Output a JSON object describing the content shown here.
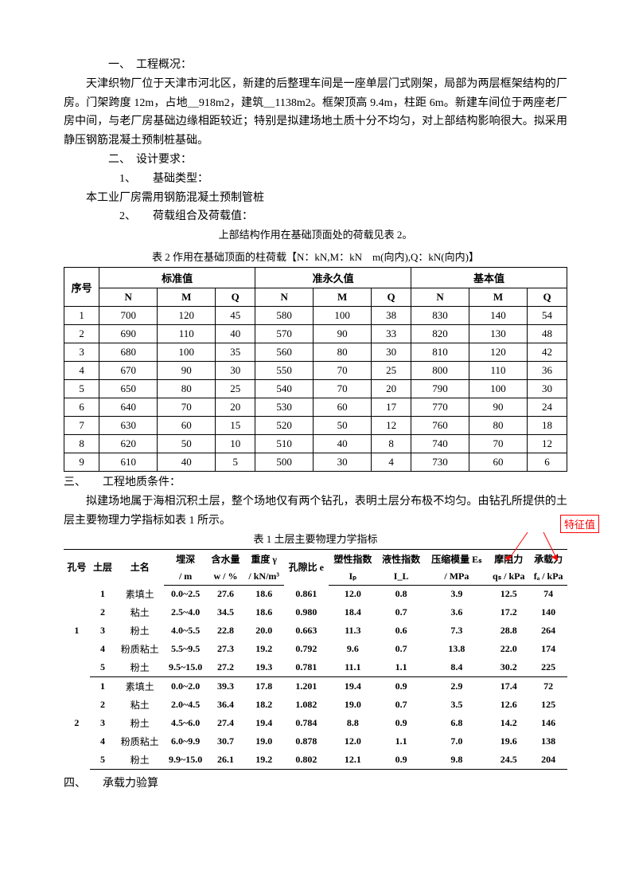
{
  "sections": {
    "s1_heading": "一、　工程概况：",
    "s1_body": "天津织物厂位于天津市河北区，新建的后整理车间是一座单层门式刚架，局部为两层框架结构的厂房。门架跨度 12m，占地＿918m2，建筑＿1138m2。框架顶高 9.4m，柱距 6m。新建车间位于两座老厂房中间，与老厂房基础边缘相距较近；特别是拟建场地土质十分不均匀，对上部结构影响很大。拟采用静压钢筋混凝土预制桩基础。",
    "s2_heading": "二、　设计要求：",
    "s2_item1": "1、　　基础类型：",
    "s2_item1_body": "本工业厂房需用钢筋混凝土预制管桩",
    "s2_item2": "2、　　荷载组合及荷载值：",
    "s2_item2_body": "上部结构作用在基础顶面处的荷载见表 2。",
    "s3_heading": "三、　　工程地质条件：",
    "s3_body": "拟建场地属于海相沉积土层，整个场地仅有两个钻孔，表明土层分布极不均匀。由钻孔所提供的土层主要物理力学指标如表 1 所示。",
    "s4_heading": "四、　　承载力验算"
  },
  "table2": {
    "caption": "表 2 作用在基础顶面的柱荷载【N：kN,M：kN　m(向内),Q：kN(向内)】",
    "group_headers": [
      "序号",
      "标准值",
      "准永久值",
      "基本值"
    ],
    "sub_headers": [
      "N",
      "M",
      "Q",
      "N",
      "M",
      "Q",
      "N",
      "M",
      "Q"
    ],
    "rows": [
      [
        "1",
        "700",
        "120",
        "45",
        "580",
        "100",
        "38",
        "830",
        "140",
        "54"
      ],
      [
        "2",
        "690",
        "110",
        "40",
        "570",
        "90",
        "33",
        "820",
        "130",
        "48"
      ],
      [
        "3",
        "680",
        "100",
        "35",
        "560",
        "80",
        "30",
        "810",
        "120",
        "42"
      ],
      [
        "4",
        "670",
        "90",
        "30",
        "550",
        "70",
        "25",
        "800",
        "110",
        "36"
      ],
      [
        "5",
        "650",
        "80",
        "25",
        "540",
        "70",
        "20",
        "790",
        "100",
        "30"
      ],
      [
        "6",
        "640",
        "70",
        "20",
        "530",
        "60",
        "17",
        "770",
        "90",
        "24"
      ],
      [
        "7",
        "630",
        "60",
        "15",
        "520",
        "50",
        "12",
        "760",
        "80",
        "18"
      ],
      [
        "8",
        "620",
        "50",
        "10",
        "510",
        "40",
        "8",
        "740",
        "70",
        "12"
      ],
      [
        "9",
        "610",
        "40",
        "5",
        "500",
        "30",
        "4",
        "730",
        "60",
        "6"
      ]
    ]
  },
  "table1": {
    "caption": "表 1 土层主要物理力学指标",
    "callout": "特征值",
    "headers": {
      "hole": "孔号",
      "layer": "土层",
      "name": "土名",
      "depth": "埋深",
      "depth_unit": "/ m",
      "water": "含水量",
      "water_unit": "w / %",
      "gamma": "重度 γ",
      "gamma_unit": "/ kN/m³",
      "void": "孔隙比 e",
      "ip": "塑性指数",
      "ip_sym": "Iₚ",
      "il": "液性指数",
      "il_sym": "I_L",
      "es": "压缩模量 Eₛ",
      "es_unit": "/ MPa",
      "qs": "摩阻力",
      "qs_unit": "qₛ / kPa",
      "fa": "承载力",
      "fa_unit": "fₐ / kPa"
    },
    "groups": [
      {
        "hole": "1",
        "rows": [
          [
            "1",
            "素填土",
            "0.0~2.5",
            "27.6",
            "18.6",
            "0.861",
            "12.0",
            "0.8",
            "3.9",
            "12.5",
            "74"
          ],
          [
            "2",
            "粘土",
            "2.5~4.0",
            "34.5",
            "18.6",
            "0.980",
            "18.4",
            "0.7",
            "3.6",
            "17.2",
            "140"
          ],
          [
            "3",
            "粉土",
            "4.0~5.5",
            "22.8",
            "20.0",
            "0.663",
            "11.3",
            "0.6",
            "7.3",
            "28.8",
            "264"
          ],
          [
            "4",
            "粉质粘土",
            "5.5~9.5",
            "27.3",
            "19.2",
            "0.792",
            "9.6",
            "0.7",
            "13.8",
            "22.0",
            "174"
          ],
          [
            "5",
            "粉土",
            "9.5~15.0",
            "27.2",
            "19.3",
            "0.781",
            "11.1",
            "1.1",
            "8.4",
            "30.2",
            "225"
          ]
        ]
      },
      {
        "hole": "2",
        "rows": [
          [
            "1",
            "素填土",
            "0.0~2.0",
            "39.3",
            "17.8",
            "1.201",
            "19.4",
            "0.9",
            "2.9",
            "17.4",
            "72"
          ],
          [
            "2",
            "粘土",
            "2.0~4.5",
            "36.4",
            "18.2",
            "1.082",
            "19.0",
            "0.7",
            "3.5",
            "12.6",
            "125"
          ],
          [
            "3",
            "粉土",
            "4.5~6.0",
            "27.4",
            "19.4",
            "0.784",
            "8.8",
            "0.9",
            "6.8",
            "14.2",
            "146"
          ],
          [
            "4",
            "粉质粘土",
            "6.0~9.9",
            "30.7",
            "19.0",
            "0.878",
            "12.0",
            "1.1",
            "7.0",
            "19.6",
            "138"
          ],
          [
            "5",
            "粉土",
            "9.9~15.0",
            "26.1",
            "19.2",
            "0.802",
            "12.1",
            "0.9",
            "9.8",
            "24.5",
            "204"
          ]
        ]
      }
    ]
  }
}
